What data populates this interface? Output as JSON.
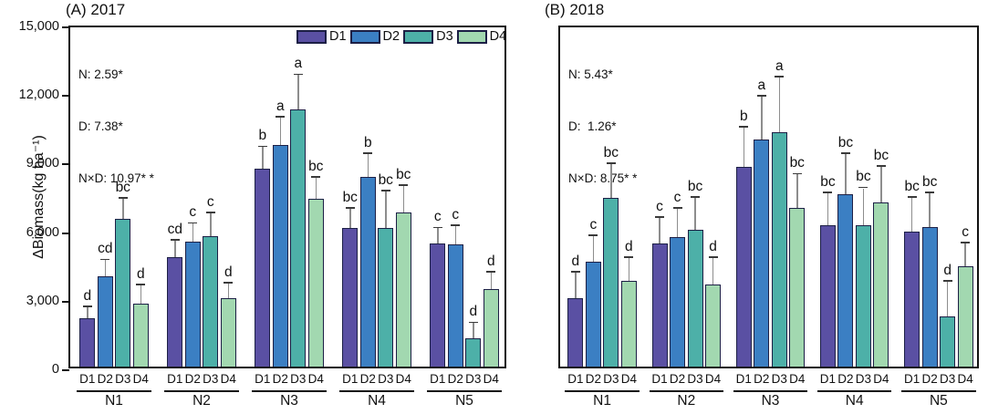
{
  "figure": {
    "ylabel": "ΔBiomass(kg ha⁻¹)",
    "legend_labels": [
      "D1",
      "D2",
      "D3",
      "D4"
    ],
    "colors": {
      "D1": "#5a50a3",
      "D2": "#3b7fc3",
      "D3": "#4db0a8",
      "D4": "#a2d8b0",
      "bar_outline": "#1c1f45",
      "axis": "#111111"
    }
  },
  "chart_data": [
    {
      "type": "bar",
      "panel": "A",
      "title": "(A) 2017",
      "anova": [
        "N: 2.59*",
        "D: 7.38*",
        "N×D: 10.97* *"
      ],
      "categories": [
        "N1",
        "N2",
        "N3",
        "N4",
        "N5"
      ],
      "series_labels": [
        "D1",
        "D2",
        "D3",
        "D4"
      ],
      "ylabel": "ΔBiomass(kg ha⁻¹)",
      "ylim": [
        0,
        15000
      ],
      "ytick_values": [
        0,
        3000,
        6000,
        9000,
        12000,
        15000
      ],
      "ytick_labels": [
        "0",
        "3,000",
        "6,000",
        "9,000",
        "12,000",
        "15,000"
      ],
      "show_ytick_labels": true,
      "legend": true,
      "series": [
        {
          "name": "D1",
          "values": [
            2100,
            4800,
            8650,
            6050,
            5400
          ],
          "errors": [
            500,
            700,
            950,
            870,
            650
          ],
          "letters": [
            "d",
            "cd",
            "b",
            "bc",
            "c"
          ]
        },
        {
          "name": "D2",
          "values": [
            3950,
            5450,
            9700,
            8300,
            5350
          ],
          "errors": [
            700,
            800,
            1200,
            1000,
            800
          ],
          "letters": [
            "cd",
            "c",
            "a",
            "b",
            "c"
          ]
        },
        {
          "name": "D3",
          "values": [
            6450,
            5700,
            11250,
            6050,
            1250
          ],
          "errors": [
            900,
            1000,
            1500,
            1600,
            650
          ],
          "letters": [
            "bc",
            "c",
            "a",
            "bc",
            "d"
          ]
        },
        {
          "name": "D4",
          "values": [
            2750,
            3000,
            7350,
            6750,
            3400
          ],
          "errors": [
            800,
            650,
            900,
            1150,
            700
          ],
          "letters": [
            "d",
            "d",
            "bc",
            "bc",
            "d"
          ]
        }
      ]
    },
    {
      "type": "bar",
      "panel": "B",
      "title": "(B) 2018",
      "anova": [
        "N: 5.43*",
        "D:  1.26*",
        "N×D: 8.75* *"
      ],
      "categories": [
        "N1",
        "N2",
        "N3",
        "N4",
        "N5"
      ],
      "series_labels": [
        "D1",
        "D2",
        "D3",
        "D4"
      ],
      "ylabel": "ΔBiomass(kg ha⁻¹)",
      "ylim": [
        0,
        15000
      ],
      "ytick_values": [
        0,
        3000,
        6000,
        9000,
        12000,
        15000
      ],
      "ytick_labels": [
        "0",
        "3,000",
        "6,000",
        "9,000",
        "12,000",
        "15,000"
      ],
      "show_ytick_labels": false,
      "legend": false,
      "series": [
        {
          "name": "D1",
          "values": [
            3000,
            5400,
            8750,
            6200,
            5900
          ],
          "errors": [
            1100,
            1100,
            1700,
            1400,
            1480
          ],
          "letters": [
            "d",
            "c",
            "b",
            "bc",
            "bc"
          ]
        },
        {
          "name": "D2",
          "values": [
            4600,
            5650,
            9950,
            7550,
            6100
          ],
          "errors": [
            1100,
            1250,
            1850,
            1750,
            1500
          ],
          "letters": [
            "c",
            "c",
            "a",
            "bc",
            "bc"
          ]
        },
        {
          "name": "D3",
          "values": [
            7400,
            6000,
            10250,
            6200,
            2200
          ],
          "errors": [
            1450,
            1400,
            2400,
            1600,
            1500
          ],
          "letters": [
            "bc",
            "bc",
            "a",
            "bc",
            "d"
          ]
        },
        {
          "name": "D4",
          "values": [
            3750,
            3600,
            6950,
            7200,
            4400
          ],
          "errors": [
            1000,
            1150,
            1450,
            1550,
            1000
          ],
          "letters": [
            "d",
            "d",
            "bc",
            "bc",
            "c"
          ]
        }
      ]
    }
  ]
}
